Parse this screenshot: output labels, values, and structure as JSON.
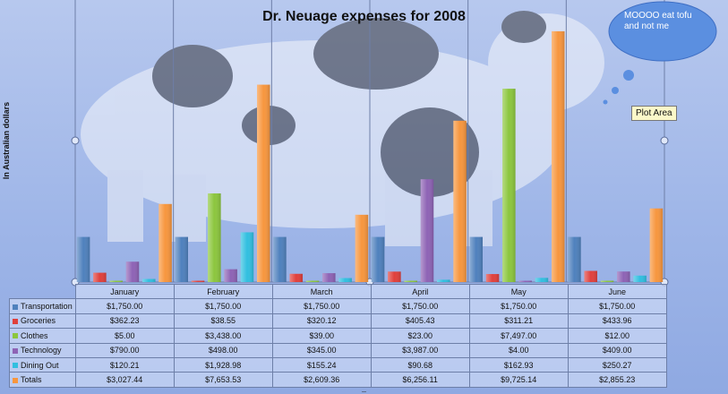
{
  "chart_data": {
    "type": "bar",
    "title": "Dr. Neuage expenses for 2008",
    "ylabel": "In Australian dollars",
    "xlabel": "",
    "categories": [
      "January",
      "February",
      "March",
      "April",
      "May",
      "June"
    ],
    "series": [
      {
        "name": "Transportation",
        "color": "#4f81bd",
        "values": [
          1750,
          1750,
          1750,
          1750,
          1750,
          1750
        ],
        "labels": [
          "$1,750.00",
          "$1,750.00",
          "$1,750.00",
          "$1,750.00",
          "$1,750.00",
          "$1,750.00"
        ]
      },
      {
        "name": "Groceries",
        "color": "#e0403c",
        "values": [
          362.23,
          38.55,
          320.12,
          405.43,
          311.21,
          433.96
        ],
        "labels": [
          "$362.23",
          "$38.55",
          "$320.12",
          "$405.43",
          "$311.21",
          "$433.96"
        ]
      },
      {
        "name": "Clothes",
        "color": "#8cc63e",
        "values": [
          5,
          3438,
          39,
          23,
          7497,
          12
        ],
        "labels": [
          "$5.00",
          "$3,438.00",
          "$39.00",
          "$23.00",
          "$7,497.00",
          "$12.00"
        ]
      },
      {
        "name": "Technology",
        "color": "#8e63b5",
        "values": [
          790,
          498,
          345,
          3987,
          4,
          409
        ],
        "labels": [
          "$790.00",
          "$498.00",
          "$345.00",
          "$3,987.00",
          "$4.00",
          "$409.00"
        ]
      },
      {
        "name": "Dining Out",
        "color": "#31bfe0",
        "values": [
          120.21,
          1928.98,
          155.24,
          90.68,
          162.93,
          250.27
        ],
        "labels": [
          "$120.21",
          "$1,928.98",
          "$155.24",
          "$90.68",
          "$162.93",
          "$250.27"
        ]
      },
      {
        "name": "Totals",
        "color": "#f7963e",
        "values": [
          3027.44,
          7653.53,
          2609.36,
          6256.11,
          9725.14,
          2855.23
        ],
        "labels": [
          "$3,027.44",
          "$7,653.53",
          "$2,609.36",
          "$6,256.11",
          "$9,725.14",
          "$2,855.23"
        ]
      }
    ],
    "ylim": [
      0,
      10000
    ],
    "grid": false,
    "legend": "data-table"
  },
  "annotations": {
    "thought_bubble": "MOOOO eat tofu and not me",
    "tooltip": "Plot Area"
  },
  "grip": "....."
}
